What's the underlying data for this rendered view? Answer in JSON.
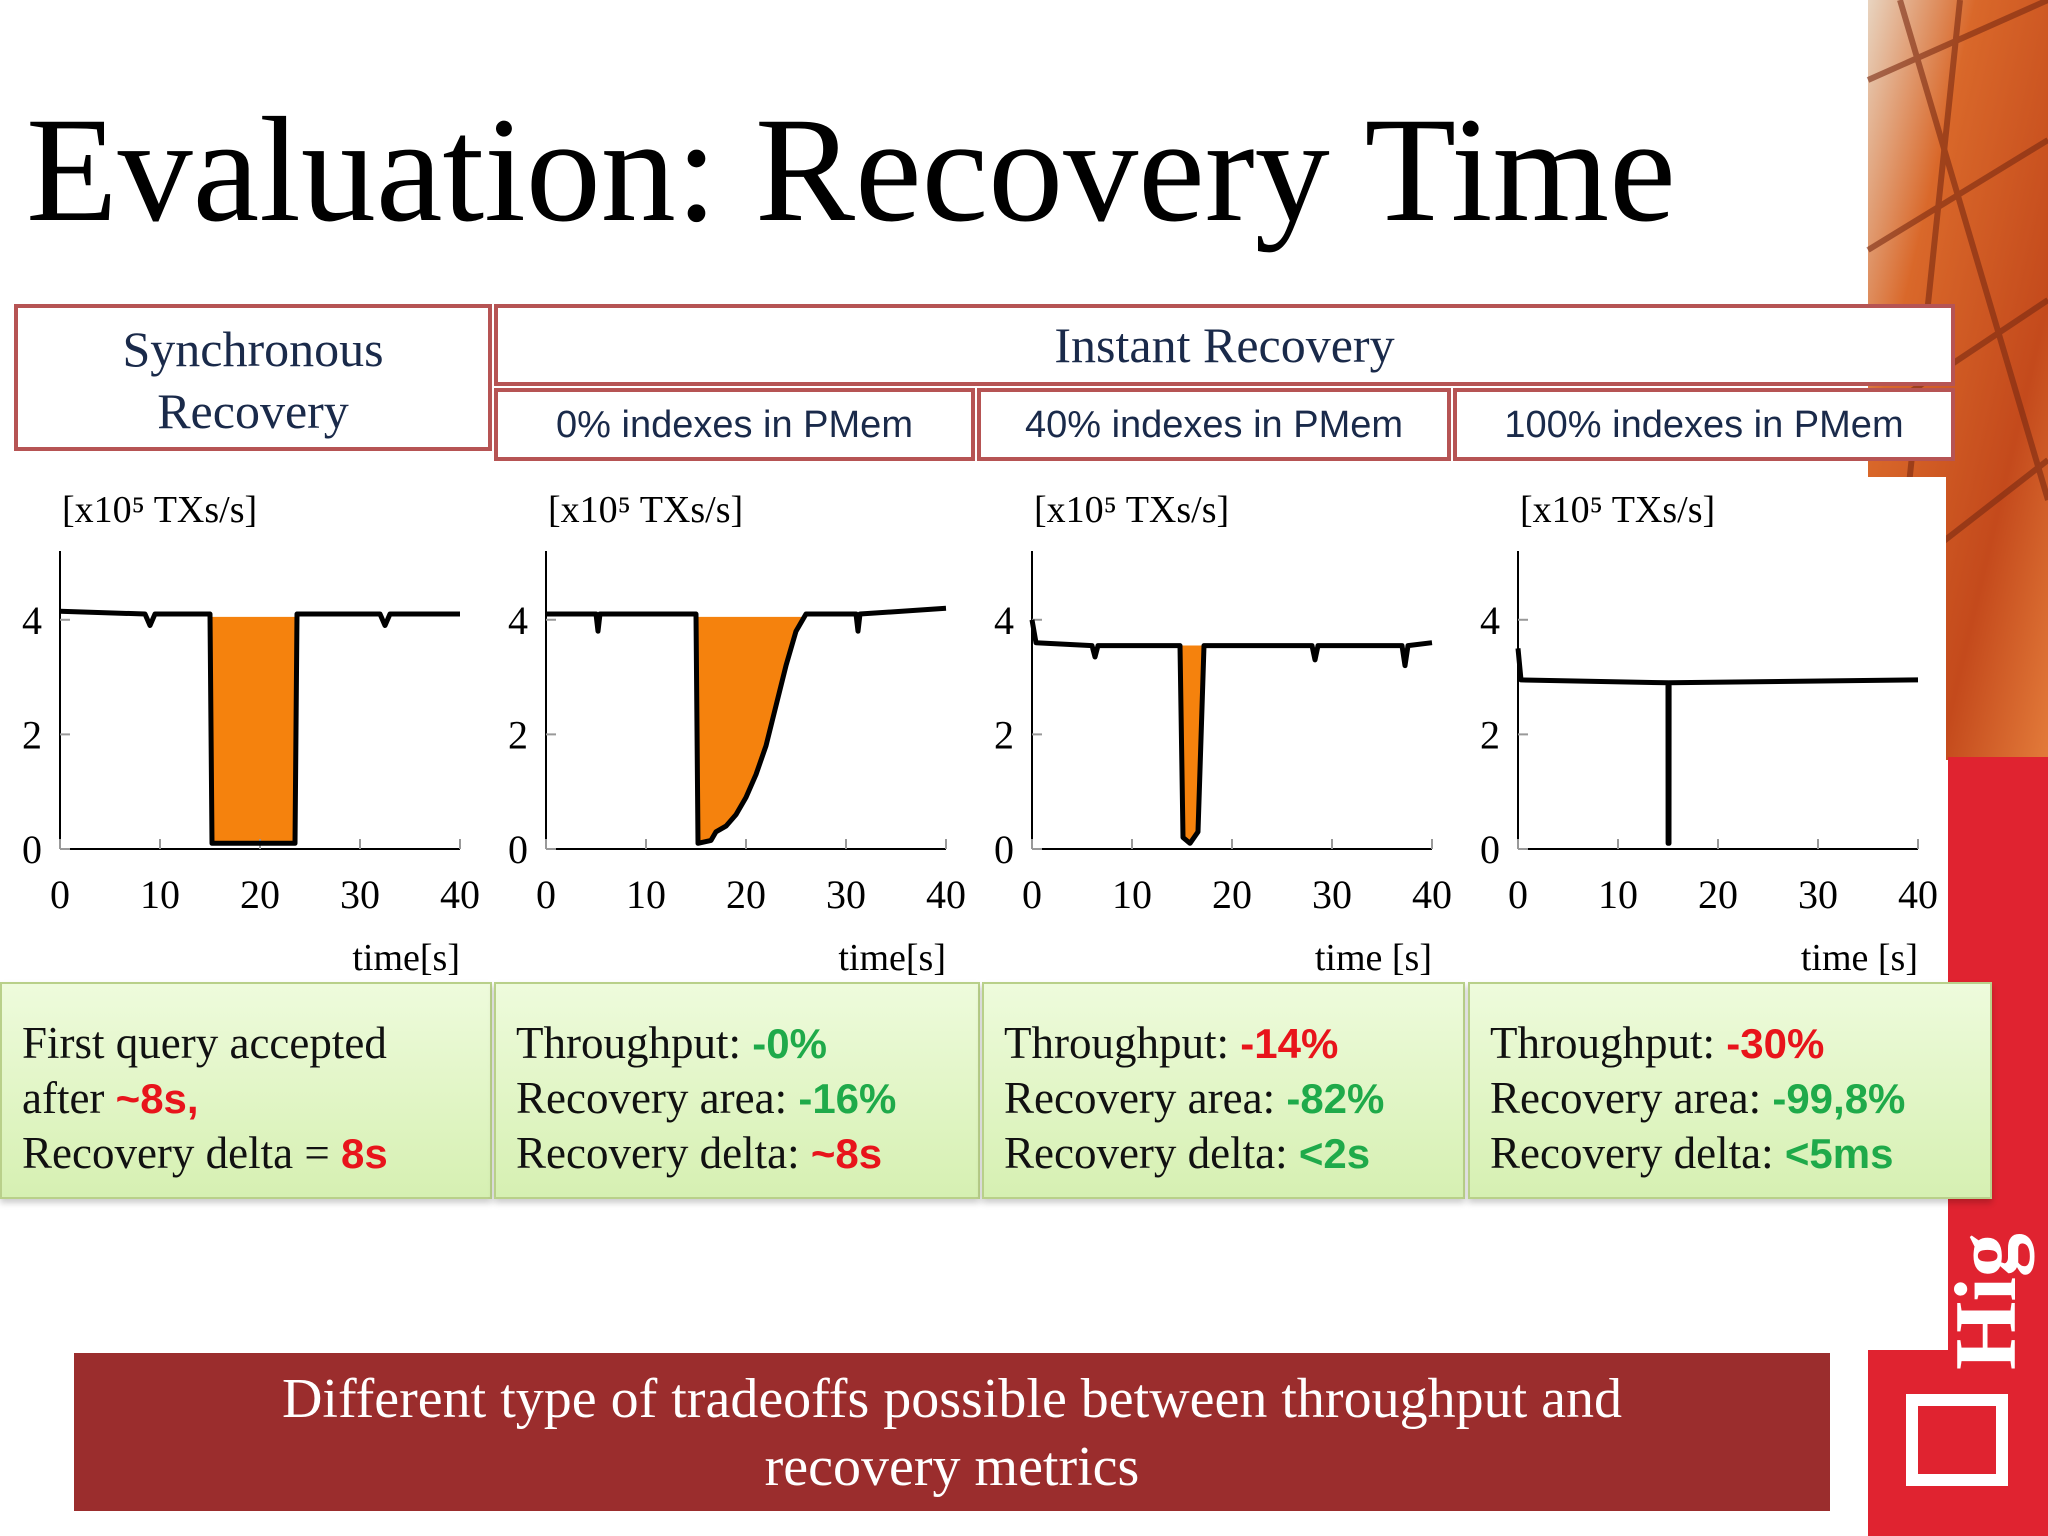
{
  "title": "Evaluation: Recovery Time",
  "header": {
    "sync": [
      "Synchronous",
      "Recovery"
    ],
    "instant": "Instant Recovery",
    "variants": [
      "0% indexes in PMem",
      "40% indexes in PMem",
      "100% indexes in PMem"
    ]
  },
  "chart_data": [
    {
      "type": "line",
      "ylabel": "[x10⁵ TXs/s]",
      "xlabel": "time[s]",
      "xlim": [
        0,
        40
      ],
      "ylim": [
        0,
        5.2
      ],
      "xticks": [
        0,
        10,
        20,
        30,
        40
      ],
      "yticks": [
        0,
        2,
        4
      ],
      "color": "#000000",
      "fill_color": "#f5820d",
      "fill_level": 4.05,
      "fill_range": [
        15,
        23.7
      ],
      "x": [
        0,
        8.5,
        9,
        9.5,
        15,
        15.2,
        23.5,
        23.7,
        32,
        32.5,
        33,
        40
      ],
      "values": [
        4.15,
        4.1,
        3.9,
        4.1,
        4.1,
        0.1,
        0.1,
        4.1,
        4.1,
        3.9,
        4.1,
        4.1
      ]
    },
    {
      "type": "line",
      "ylabel": "[x10⁵ TXs/s]",
      "xlabel": "time[s]",
      "xlim": [
        0,
        40
      ],
      "ylim": [
        0,
        5.2
      ],
      "xticks": [
        0,
        10,
        20,
        30,
        40
      ],
      "yticks": [
        0,
        2,
        4
      ],
      "color": "#000000",
      "fill_color": "#f5820d",
      "fill_level": 4.05,
      "fill_range": [
        15,
        26
      ],
      "x": [
        0,
        5,
        5.2,
        5.4,
        15,
        15.2,
        16.5,
        17,
        18,
        19,
        20,
        21,
        22,
        23,
        24,
        25,
        26,
        31,
        31.2,
        31.4,
        40
      ],
      "values": [
        4.1,
        4.1,
        3.8,
        4.1,
        4.1,
        0.1,
        0.15,
        0.3,
        0.4,
        0.6,
        0.9,
        1.3,
        1.8,
        2.5,
        3.2,
        3.8,
        4.1,
        4.1,
        3.8,
        4.1,
        4.2
      ]
    },
    {
      "type": "line",
      "ylabel": "[x10⁵ TXs/s]",
      "xlabel": "time [s]",
      "xlim": [
        0,
        40
      ],
      "ylim": [
        0,
        5.2
      ],
      "xticks": [
        0,
        10,
        20,
        30,
        40
      ],
      "yticks": [
        0,
        2,
        4
      ],
      "color": "#000000",
      "fill_color": "#f5820d",
      "fill_level": 3.55,
      "fill_range": [
        14.8,
        17.2
      ],
      "x": [
        0,
        0.4,
        6,
        6.3,
        6.6,
        14.8,
        15.1,
        15.8,
        16.6,
        17.2,
        28,
        28.3,
        28.6,
        37,
        37.3,
        37.6,
        40
      ],
      "values": [
        4.0,
        3.6,
        3.55,
        3.35,
        3.55,
        3.55,
        0.2,
        0.1,
        0.3,
        3.55,
        3.55,
        3.3,
        3.55,
        3.55,
        3.2,
        3.55,
        3.6
      ]
    },
    {
      "type": "line",
      "ylabel": "[x10⁵ TXs/s]",
      "xlabel": "time [s]",
      "xlim": [
        0,
        40
      ],
      "ylim": [
        0,
        5.2
      ],
      "xticks": [
        0,
        10,
        20,
        30,
        40
      ],
      "yticks": [
        0,
        2,
        4
      ],
      "color": "#000000",
      "x": [
        0,
        0.3,
        15,
        15.01,
        15.1,
        15.11,
        40
      ],
      "values": [
        3.5,
        2.95,
        2.9,
        0.1,
        0.1,
        2.9,
        2.95
      ]
    }
  ],
  "results": [
    {
      "lines": [
        [
          {
            "text": "First query accepted"
          }
        ],
        [
          {
            "text": "after "
          },
          {
            "text": "~8s,",
            "color": "#e8141b"
          }
        ],
        [
          {
            "text": "Recovery delta = "
          },
          {
            "text": "8s",
            "color": "#e8141b"
          }
        ]
      ]
    },
    {
      "lines": [
        [
          {
            "text": "Throughput: "
          },
          {
            "text": "-0%",
            "color": "#1faa4a"
          }
        ],
        [
          {
            "text": "Recovery area: "
          },
          {
            "text": "-16%",
            "color": "#1faa4a"
          }
        ],
        [
          {
            "text": "Recovery delta: "
          },
          {
            "text": "~8s",
            "color": "#e8141b"
          }
        ]
      ]
    },
    {
      "lines": [
        [
          {
            "text": "Throughput: "
          },
          {
            "text": "-14%",
            "color": "#e8141b"
          }
        ],
        [
          {
            "text": "Recovery area: "
          },
          {
            "text": "-82%",
            "color": "#1faa4a"
          }
        ],
        [
          {
            "text": "Recovery delta: "
          },
          {
            "text": "<2s",
            "color": "#1faa4a"
          }
        ]
      ]
    },
    {
      "lines": [
        [
          {
            "text": "Throughput: "
          },
          {
            "text": "-30%",
            "color": "#e8141b"
          }
        ],
        [
          {
            "text": "Recovery area: "
          },
          {
            "text": "-99,8%",
            "color": "#1faa4a"
          }
        ],
        [
          {
            "text": "Recovery delta: "
          },
          {
            "text": "<5ms",
            "color": "#1faa4a"
          }
        ]
      ]
    }
  ],
  "conclusion": [
    "Different type of tradeoffs possible between throughput and",
    "recovery metrics"
  ],
  "logo": "Hig"
}
